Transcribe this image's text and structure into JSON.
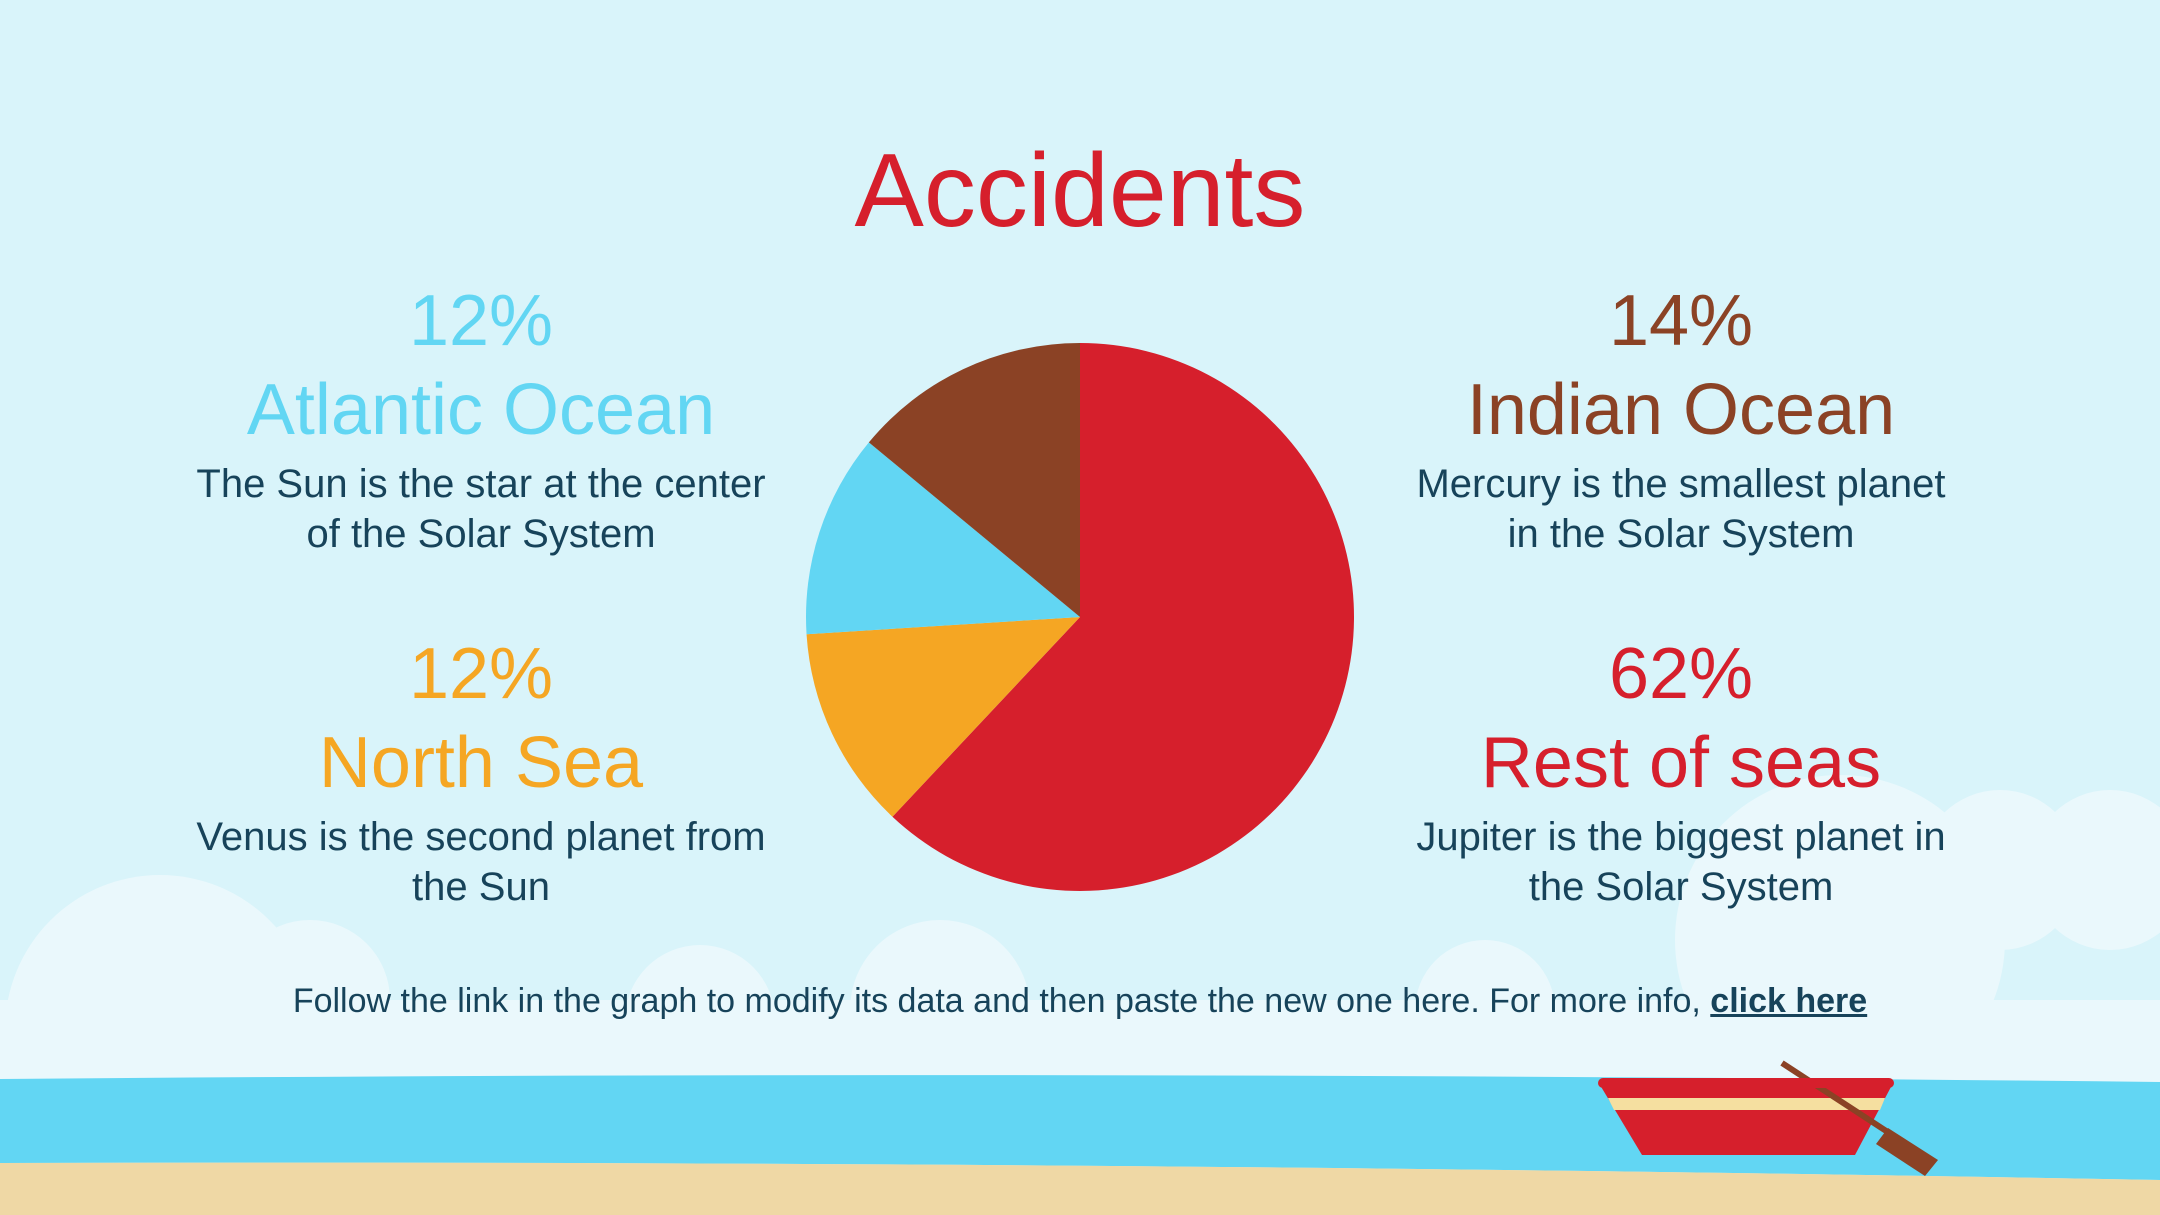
{
  "chart_data": {
    "type": "pie",
    "title": "Accidents",
    "categories": [
      "Rest of seas",
      "North Sea",
      "Atlantic Ocean",
      "Indian Ocean"
    ],
    "values": [
      62,
      12,
      12,
      14
    ],
    "value_labels": [
      "62%",
      "12%",
      "12%",
      "14%"
    ],
    "colors": [
      "#d61f2c",
      "#f5a623",
      "#62d6f3",
      "#8b4225"
    ],
    "descriptions": [
      "Jupiter is the biggest planet in the Solar System",
      "Venus is the second planet from the Sun",
      "The Sun is the star at the center of the Solar System",
      "Mercury is the smallest planet in the Solar System"
    ]
  },
  "footer": {
    "text": "Follow the link in the graph to modify its data and then paste the new one here. For more info,",
    "link": "click here"
  }
}
